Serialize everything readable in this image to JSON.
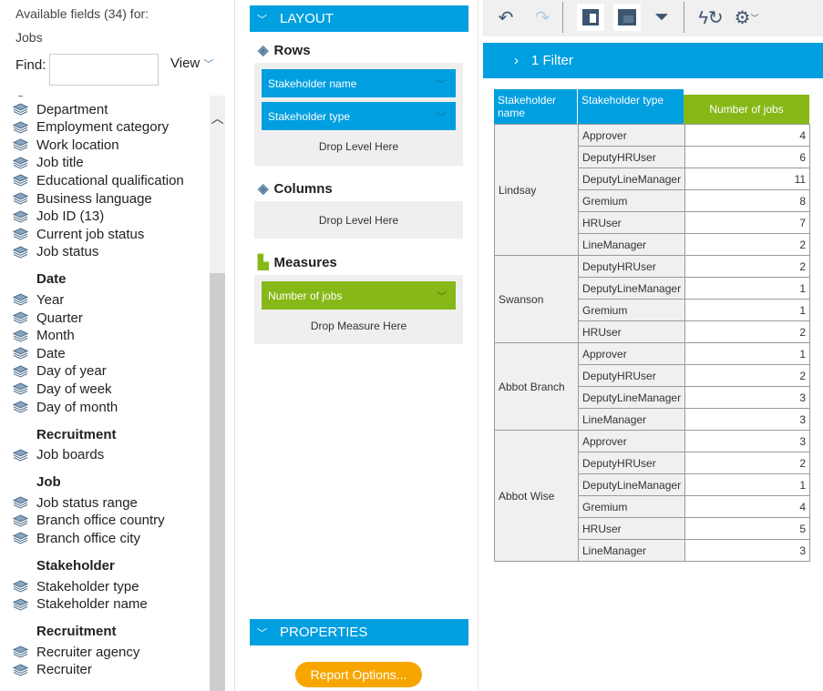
{
  "left": {
    "title": "Available fields (34) for:",
    "subtitle": "Jobs",
    "find_label": "Find:",
    "find_value": "",
    "view_label": "View",
    "top_fields": [
      "Department",
      "Employment category",
      "Work location",
      "Job title",
      "Educational qualification",
      "Business language",
      "Job ID (13)",
      "Current job status",
      "Job status"
    ],
    "groups": [
      {
        "name": "Date",
        "items": [
          "Year",
          "Quarter",
          "Month",
          "Date",
          "Day of year",
          "Day of week",
          "Day of month"
        ]
      },
      {
        "name": "Recruitment",
        "items": [
          "Job boards"
        ]
      },
      {
        "name": "Job",
        "items": [
          "Job status range",
          "Branch office country",
          "Branch office city"
        ]
      },
      {
        "name": "Stakeholder",
        "items": [
          "Stakeholder type",
          "Stakeholder name"
        ]
      },
      {
        "name": "Recruitment",
        "items": [
          "Recruiter agency",
          "Recruiter"
        ]
      }
    ]
  },
  "layout": {
    "header": "LAYOUT",
    "rows_label": "Rows",
    "rows": [
      "Stakeholder name",
      "Stakeholder type"
    ],
    "drop_level": "Drop Level Here",
    "columns_label": "Columns",
    "measures_label": "Measures",
    "measures": [
      "Number of jobs"
    ],
    "drop_measure": "Drop Measure Here",
    "properties": "PROPERTIES",
    "report_options": "Report Options..."
  },
  "toolbar": {
    "icons": [
      "undo-icon",
      "redo-icon",
      "layout-panel-icon",
      "table-view-icon",
      "filter-icon",
      "auto-refresh-icon",
      "settings-icon"
    ]
  },
  "filter_bar": "1 Filter",
  "table": {
    "headers": [
      "Stakeholder name",
      "Stakeholder type",
      "Number of jobs"
    ],
    "groups": [
      {
        "name": "Lindsay",
        "rows": [
          [
            "Approver",
            4
          ],
          [
            "DeputyHRUser",
            6
          ],
          [
            "DeputyLineManager",
            11
          ],
          [
            "Gremium",
            8
          ],
          [
            "HRUser",
            7
          ],
          [
            "LineManager",
            2
          ]
        ]
      },
      {
        "name": "Swanson",
        "rows": [
          [
            "DeputyHRUser",
            2
          ],
          [
            "DeputyLineManager",
            1
          ],
          [
            "Gremium",
            1
          ],
          [
            "HRUser",
            2
          ]
        ]
      },
      {
        "name": "Abbot Branch",
        "rows": [
          [
            "Approver",
            1
          ],
          [
            "DeputyHRUser",
            2
          ],
          [
            "DeputyLineManager",
            3
          ],
          [
            "LineManager",
            3
          ]
        ]
      },
      {
        "name": "Abbot Wise",
        "rows": [
          [
            "Approver",
            3
          ],
          [
            "DeputyHRUser",
            2
          ],
          [
            "DeputyLineManager",
            1
          ],
          [
            "Gremium",
            4
          ],
          [
            "HRUser",
            5
          ],
          [
            "LineManager",
            3
          ]
        ]
      }
    ]
  },
  "colors": {
    "blue": "#009fe0",
    "green": "#86b817",
    "orange": "#f7a600"
  }
}
